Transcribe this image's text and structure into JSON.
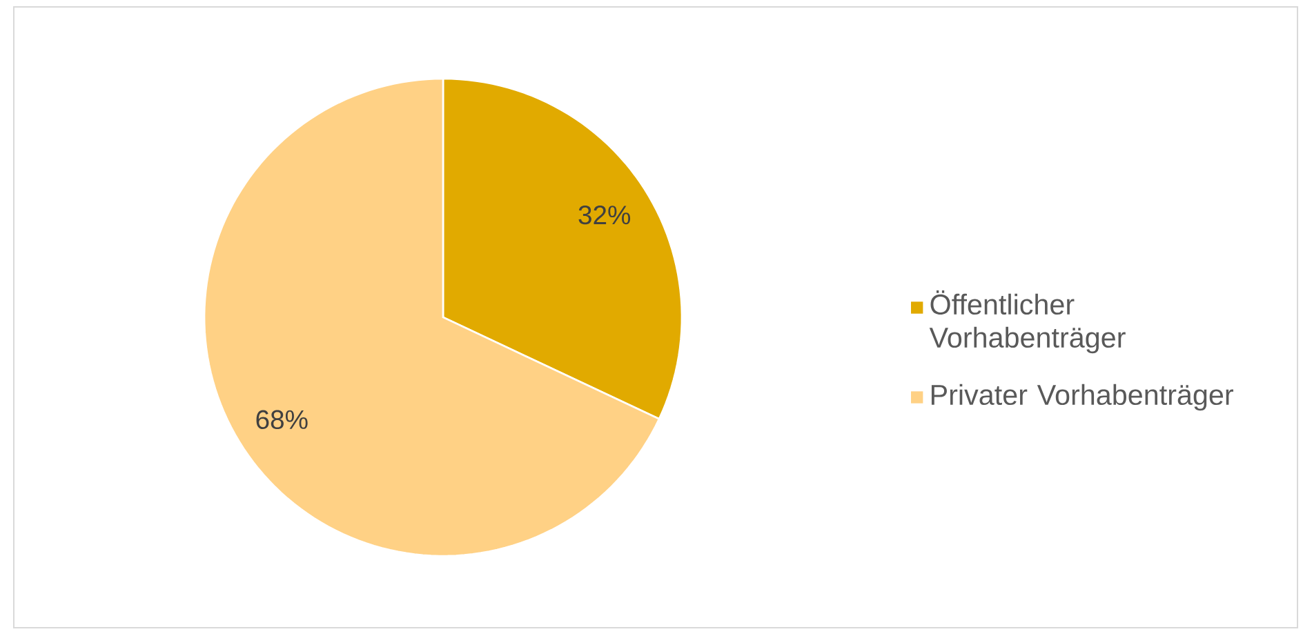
{
  "chart_data": {
    "type": "pie",
    "categories": [
      "Öffentlicher Vorhabenträger",
      "Privater Vorhabenträger"
    ],
    "values": [
      32,
      68
    ],
    "colors": [
      "#e1aa00",
      "#ffd185"
    ],
    "value_labels": [
      "32%",
      "68%"
    ],
    "legend": "right"
  }
}
